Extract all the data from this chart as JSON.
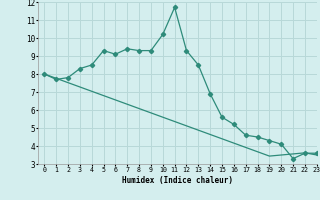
{
  "x": [
    0,
    1,
    2,
    3,
    4,
    5,
    6,
    7,
    8,
    9,
    10,
    11,
    12,
    13,
    14,
    15,
    16,
    17,
    18,
    19,
    20,
    21,
    22,
    23
  ],
  "line1_y": [
    8.0,
    7.7,
    7.8,
    8.3,
    8.5,
    9.3,
    9.1,
    9.4,
    9.3,
    9.3,
    10.2,
    11.7,
    9.3,
    8.5,
    6.9,
    5.6,
    5.2,
    4.6,
    4.5,
    4.3,
    4.1,
    3.3,
    3.6,
    3.6
  ],
  "line2_y": [
    8.0,
    7.76,
    7.52,
    7.28,
    7.04,
    6.8,
    6.56,
    6.32,
    6.08,
    5.84,
    5.6,
    5.36,
    5.12,
    4.88,
    4.64,
    4.4,
    4.16,
    3.92,
    3.68,
    3.44,
    3.5,
    3.56,
    3.62,
    3.5
  ],
  "color": "#2e8b7a",
  "bg_color": "#d4eeee",
  "grid_color": "#b8d8d8",
  "xlabel": "Humidex (Indice chaleur)",
  "ylim": [
    3,
    12
  ],
  "xlim": [
    -0.5,
    23
  ],
  "yticks": [
    3,
    4,
    5,
    6,
    7,
    8,
    9,
    10,
    11,
    12
  ],
  "xticks": [
    0,
    1,
    2,
    3,
    4,
    5,
    6,
    7,
    8,
    9,
    10,
    11,
    12,
    13,
    14,
    15,
    16,
    17,
    18,
    19,
    20,
    21,
    22,
    23
  ]
}
